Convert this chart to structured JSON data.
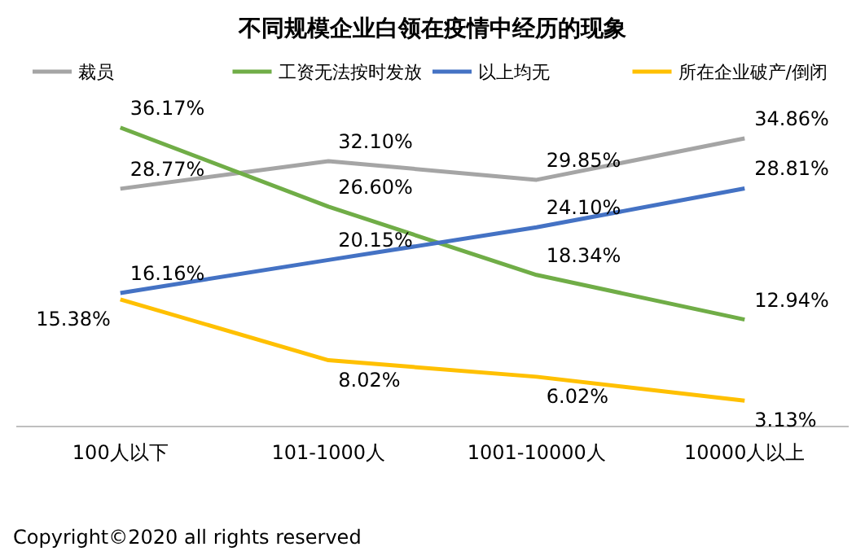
{
  "chart_data": {
    "type": "line",
    "title": "不同规模企业白领在疫情中经历的现象",
    "categories": [
      "100人以下",
      "101-1000人",
      "1001-10000人",
      "10000人以上"
    ],
    "series": [
      {
        "name": "裁员",
        "color": "#a5a5a5",
        "values": [
          28.77,
          32.1,
          29.85,
          34.86
        ],
        "value_labels": [
          "28.77%",
          "32.10%",
          "29.85%",
          "34.86%"
        ]
      },
      {
        "name": "工资无法按时发放",
        "color": "#70ad47",
        "values": [
          36.17,
          26.6,
          18.34,
          12.94
        ],
        "value_labels": [
          "36.17%",
          "26.60%",
          "18.34%",
          "12.94%"
        ]
      },
      {
        "name": "以上均无",
        "color": "#4472c4",
        "values": [
          16.16,
          20.15,
          24.1,
          28.81
        ],
        "value_labels": [
          "16.16%",
          "20.15%",
          "24.10%",
          "28.81%"
        ]
      },
      {
        "name": "所在企业破产/倒闭",
        "color": "#ffc000",
        "values": [
          15.38,
          8.02,
          6.02,
          3.13
        ],
        "value_labels": [
          "15.38%",
          "8.02%",
          "6.02%",
          "3.13%"
        ]
      }
    ],
    "legend": "top",
    "marker": "none",
    "annotations": [
      "Copyright©2020 all rights reserved"
    ]
  }
}
